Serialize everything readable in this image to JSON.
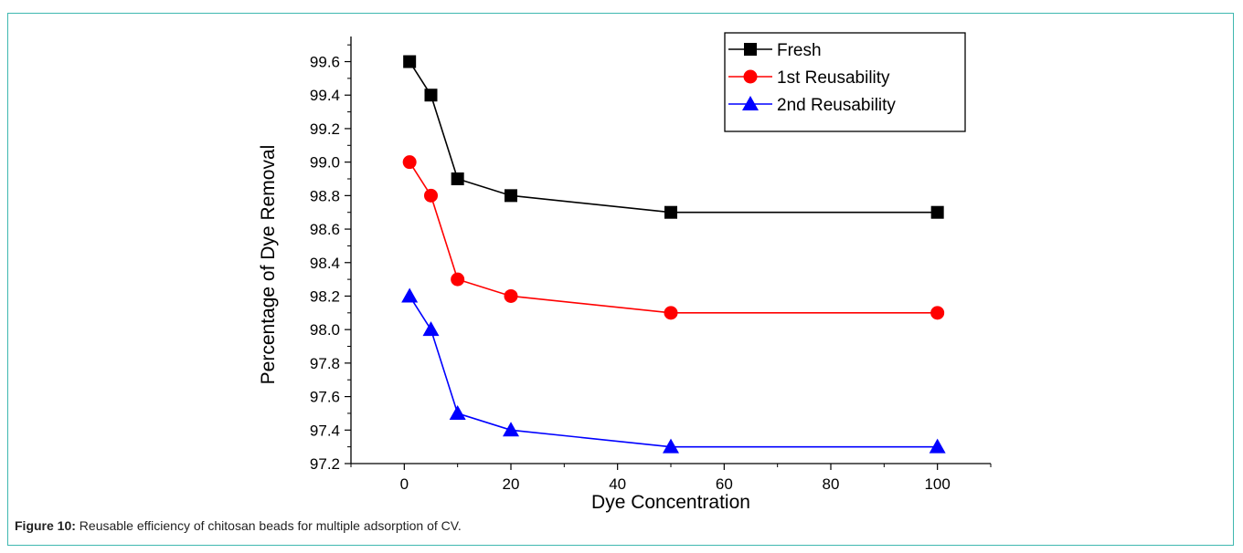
{
  "chart_data": {
    "type": "line",
    "title": "",
    "xlabel": "Dye Concentration",
    "ylabel": "Percentage of Dye Removal",
    "xlim": [
      -10,
      110
    ],
    "ylim": [
      97.2,
      99.75
    ],
    "x_ticks": [
      0,
      20,
      40,
      60,
      80,
      100
    ],
    "y_ticks": [
      97.2,
      97.4,
      97.6,
      97.8,
      98.0,
      98.2,
      98.4,
      98.6,
      98.8,
      99.0,
      99.2,
      99.4,
      99.6
    ],
    "x_tick_labels": [
      "0",
      "20",
      "40",
      "60",
      "80",
      "100"
    ],
    "y_tick_labels": [
      "97.2",
      "97.4",
      "97.6",
      "97.8",
      "98.0",
      "98.2",
      "98.4",
      "98.6",
      "98.8",
      "99.0",
      "99.2",
      "99.4",
      "99.6"
    ],
    "grid": false,
    "legend_position": "top-right",
    "x": [
      1,
      5,
      10,
      20,
      50,
      100
    ],
    "series": [
      {
        "name": "Fresh",
        "color": "#000000",
        "marker": "square",
        "values": [
          99.6,
          99.4,
          98.9,
          98.8,
          98.7,
          98.7
        ]
      },
      {
        "name": "1st Reusability",
        "color": "#ff0000",
        "marker": "circle",
        "values": [
          99.0,
          98.8,
          98.3,
          98.2,
          98.1,
          98.1
        ]
      },
      {
        "name": "2nd Reusability",
        "color": "#0000ff",
        "marker": "triangle",
        "values": [
          98.2,
          98.0,
          97.5,
          97.4,
          97.3,
          97.3
        ]
      }
    ]
  },
  "caption": {
    "label": "Figure 10:",
    "text": " Reusable efficiency of chitosan beads for multiple adsorption of CV."
  }
}
